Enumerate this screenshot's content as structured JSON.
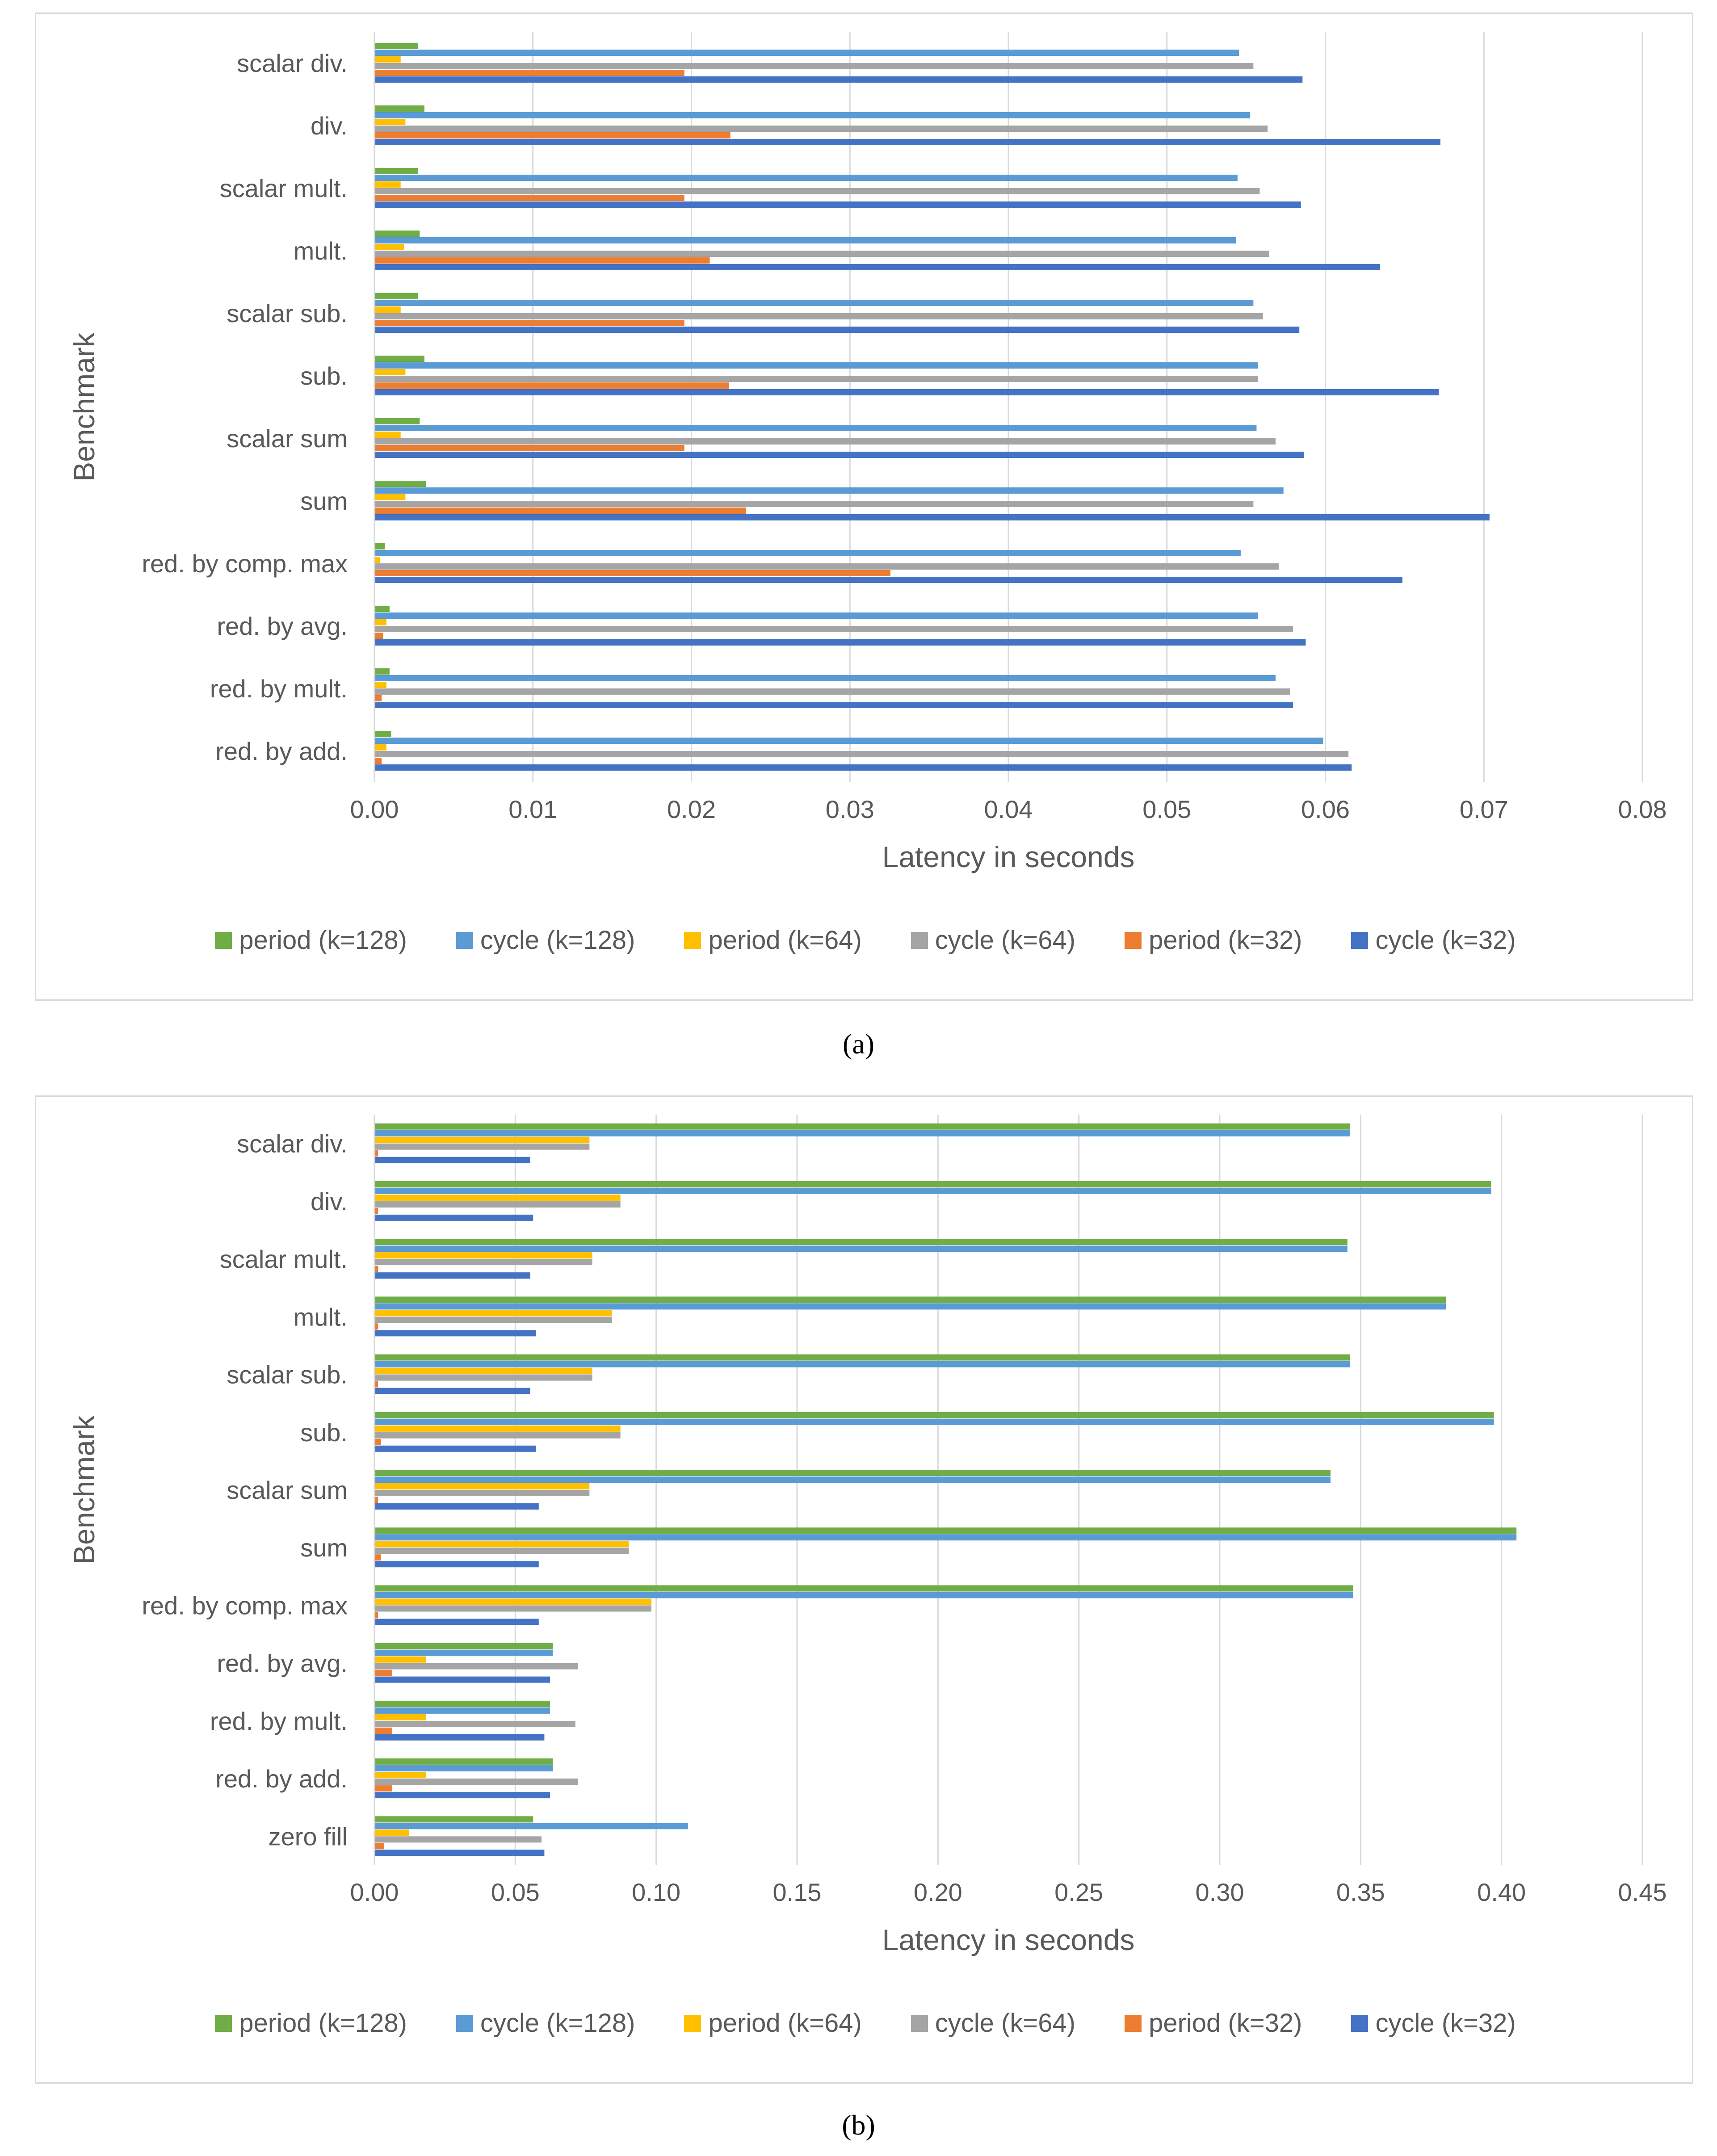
{
  "captions": {
    "a": "(a)",
    "b": "(b)"
  },
  "colors": {
    "period (k=128)": "#70ad47",
    "cycle (k=128)": "#5b9bd5",
    "period (k=64)": "#ffc000",
    "cycle (k=64)": "#a5a5a5",
    "period (k=32)": "#ed7d31",
    "cycle (k=32)": "#4472c4",
    "grid": "#d9d9d9",
    "text": "#595959"
  },
  "chart_data": [
    {
      "type": "bar",
      "orientation": "horizontal",
      "title": "",
      "xlabel": "Latency in seconds",
      "ylabel": "Benchmark",
      "xlim": [
        0,
        0.08
      ],
      "xticks": [
        "0.00",
        "0.01",
        "0.02",
        "0.03",
        "0.04",
        "0.05",
        "0.06",
        "0.07",
        "0.08"
      ],
      "grid": true,
      "legend": "bottom",
      "categories": [
        "scalar div.",
        "div.",
        "scalar mult.",
        "mult.",
        "scalar sub.",
        "sub.",
        "scalar sum",
        "sum",
        "red. by comp. max",
        "red. by avg.",
        "red. by mult.",
        "red. by add."
      ],
      "series": [
        {
          "name": "period (k=128)",
          "values": [
            0.0027,
            0.0031,
            0.0027,
            0.0028,
            0.0027,
            0.0031,
            0.0028,
            0.0032,
            0.0006,
            0.0009,
            0.0009,
            0.001
          ]
        },
        {
          "name": "cycle (k=128)",
          "values": [
            0.0545,
            0.0552,
            0.0544,
            0.0543,
            0.0554,
            0.0557,
            0.0556,
            0.0573,
            0.0546,
            0.0557,
            0.0568,
            0.0598
          ]
        },
        {
          "name": "period (k=64)",
          "values": [
            0.0016,
            0.0019,
            0.0016,
            0.0018,
            0.0016,
            0.0019,
            0.0016,
            0.0019,
            0.0003,
            0.0007,
            0.0007,
            0.0007
          ]
        },
        {
          "name": "cycle (k=64)",
          "values": [
            0.0554,
            0.0563,
            0.0558,
            0.0564,
            0.056,
            0.0557,
            0.0568,
            0.0554,
            0.057,
            0.0579,
            0.0577,
            0.0614
          ]
        },
        {
          "name": "period (k=32)",
          "values": [
            0.0195,
            0.0224,
            0.0195,
            0.0211,
            0.0195,
            0.0223,
            0.0195,
            0.0234,
            0.0325,
            0.0005,
            0.0004,
            0.0004
          ]
        },
        {
          "name": "cycle (k=32)",
          "values": [
            0.0585,
            0.0672,
            0.0584,
            0.0634,
            0.0583,
            0.0671,
            0.0586,
            0.0703,
            0.0648,
            0.0587,
            0.0579,
            0.0616
          ]
        }
      ]
    },
    {
      "type": "bar",
      "orientation": "horizontal",
      "title": "",
      "xlabel": "Latency in seconds",
      "ylabel": "Benchmark",
      "xlim": [
        0,
        0.45
      ],
      "xticks": [
        "0.00",
        "0.05",
        "0.10",
        "0.15",
        "0.20",
        "0.25",
        "0.30",
        "0.35",
        "0.40",
        "0.45"
      ],
      "grid": true,
      "legend": "bottom",
      "categories": [
        "scalar div.",
        "div.",
        "scalar mult.",
        "mult.",
        "scalar sub.",
        "sub.",
        "scalar sum",
        "sum",
        "red. by comp. max",
        "red. by avg.",
        "red. by mult.",
        "red. by add.",
        "zero fill"
      ],
      "series": [
        {
          "name": "period (k=128)",
          "values": [
            0.346,
            0.396,
            0.345,
            0.38,
            0.346,
            0.397,
            0.339,
            0.405,
            0.347,
            0.063,
            0.062,
            0.063,
            0.056
          ]
        },
        {
          "name": "cycle (k=128)",
          "values": [
            0.346,
            0.396,
            0.345,
            0.38,
            0.346,
            0.397,
            0.339,
            0.405,
            0.347,
            0.063,
            0.062,
            0.063,
            0.111
          ]
        },
        {
          "name": "period (k=64)",
          "values": [
            0.076,
            0.087,
            0.077,
            0.084,
            0.077,
            0.087,
            0.076,
            0.09,
            0.098,
            0.018,
            0.018,
            0.018,
            0.012
          ]
        },
        {
          "name": "cycle (k=64)",
          "values": [
            0.076,
            0.087,
            0.077,
            0.084,
            0.077,
            0.087,
            0.076,
            0.09,
            0.098,
            0.072,
            0.071,
            0.072,
            0.059
          ]
        },
        {
          "name": "period (k=32)",
          "values": [
            0.001,
            0.001,
            0.001,
            0.001,
            0.001,
            0.002,
            0.001,
            0.002,
            0.001,
            0.006,
            0.006,
            0.006,
            0.003
          ]
        },
        {
          "name": "cycle (k=32)",
          "values": [
            0.055,
            0.056,
            0.055,
            0.057,
            0.055,
            0.057,
            0.058,
            0.058,
            0.058,
            0.062,
            0.06,
            0.062,
            0.06
          ]
        }
      ]
    }
  ]
}
